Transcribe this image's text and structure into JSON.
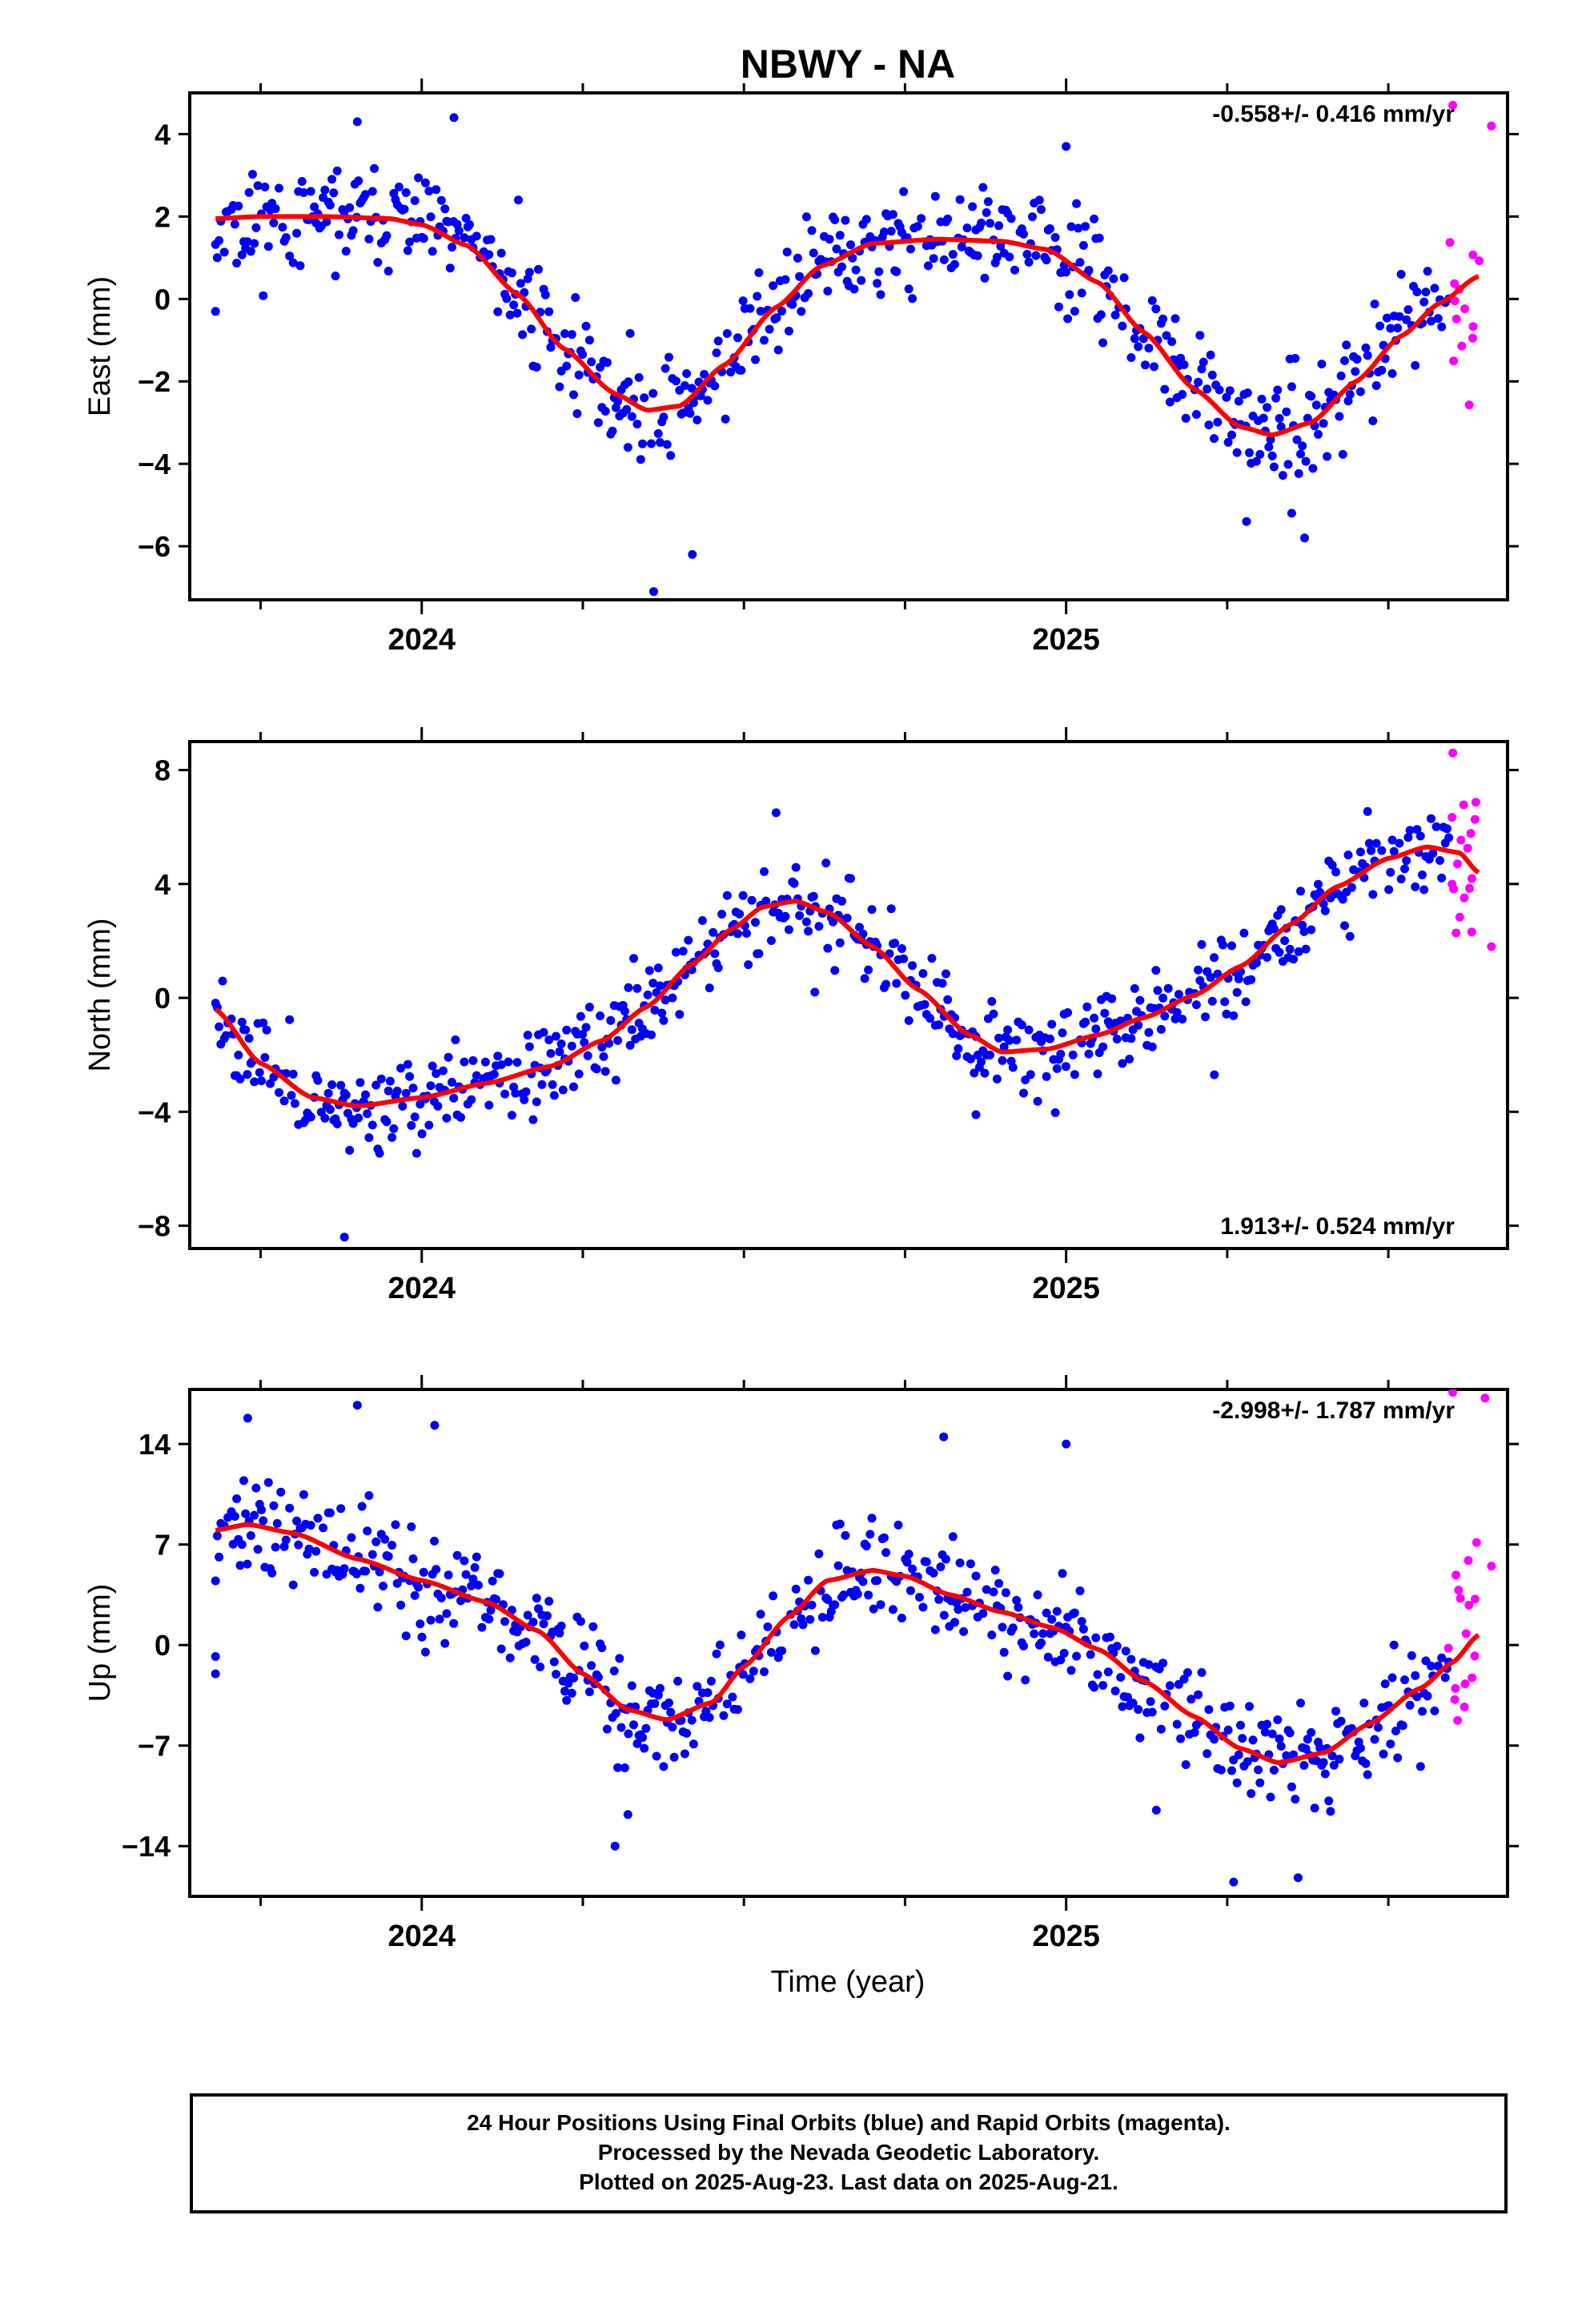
{
  "title": "NBWY - NA",
  "xlabel": "Time (year)",
  "colors": {
    "final": "#0000ff",
    "rapid": "#ff00ff",
    "fit": "#ff0000"
  },
  "chart_data": [
    {
      "type": "scatter",
      "component": "east",
      "ylabel": "East (mm)",
      "rate_label": "-0.558+/- 0.416 mm/yr",
      "rate_position": "top-right",
      "xlim": [
        2023.64,
        2025.685
      ],
      "ylim": [
        -7.3,
        5.0
      ],
      "yticks": [
        4,
        2,
        0,
        -2,
        -4,
        -6
      ],
      "xtick_labels": [
        {
          "x": 2024.0,
          "label": "2024"
        },
        {
          "x": 2025.0,
          "label": "2025"
        }
      ],
      "fit_knots": [
        [
          2023.68,
          1.95
        ],
        [
          2023.75,
          2.0
        ],
        [
          2023.85,
          2.0
        ],
        [
          2023.95,
          1.95
        ],
        [
          2024.0,
          1.8
        ],
        [
          2024.07,
          1.3
        ],
        [
          2024.15,
          0.1
        ],
        [
          2024.22,
          -1.2
        ],
        [
          2024.3,
          -2.3
        ],
        [
          2024.35,
          -2.7
        ],
        [
          2024.4,
          -2.6
        ],
        [
          2024.47,
          -1.6
        ],
        [
          2024.55,
          -0.2
        ],
        [
          2024.62,
          0.8
        ],
        [
          2024.7,
          1.35
        ],
        [
          2024.8,
          1.45
        ],
        [
          2024.9,
          1.4
        ],
        [
          2024.97,
          1.2
        ],
        [
          2025.05,
          0.4
        ],
        [
          2025.12,
          -0.8
        ],
        [
          2025.2,
          -2.2
        ],
        [
          2025.27,
          -3.1
        ],
        [
          2025.32,
          -3.3
        ],
        [
          2025.38,
          -3.0
        ],
        [
          2025.45,
          -2.0
        ],
        [
          2025.52,
          -0.9
        ],
        [
          2025.58,
          -0.1
        ],
        [
          2025.64,
          0.55
        ]
      ],
      "rapid_start": 2025.595,
      "scatter_amp": 0.9,
      "seed": 11,
      "outliers": [
        [
          2023.68,
          -0.3
        ],
        [
          2023.9,
          4.3
        ],
        [
          2024.05,
          4.4
        ],
        [
          2024.15,
          2.4
        ],
        [
          2024.32,
          -3.6
        ],
        [
          2024.36,
          -7.1
        ],
        [
          2024.42,
          -6.2
        ],
        [
          2025.0,
          3.7
        ],
        [
          2025.28,
          -5.4
        ],
        [
          2025.35,
          -5.2
        ],
        [
          2025.37,
          -5.8
        ],
        [
          2025.6,
          4.7
        ],
        [
          2025.66,
          4.2
        ]
      ]
    },
    {
      "type": "scatter",
      "component": "north",
      "ylabel": "North (mm)",
      "rate_label": "1.913+/- 0.524 mm/yr",
      "rate_position": "bottom-right",
      "xlim": [
        2023.64,
        2025.685
      ],
      "ylim": [
        -8.8,
        9.0
      ],
      "yticks": [
        8,
        4,
        0,
        -4,
        -8
      ],
      "xtick_labels": [
        {
          "x": 2024.0,
          "label": "2024"
        },
        {
          "x": 2025.0,
          "label": "2025"
        }
      ],
      "fit_knots": [
        [
          2023.68,
          -0.4
        ],
        [
          2023.75,
          -2.3
        ],
        [
          2023.83,
          -3.5
        ],
        [
          2023.9,
          -3.8
        ],
        [
          2024.0,
          -3.5
        ],
        [
          2024.1,
          -3.0
        ],
        [
          2024.2,
          -2.4
        ],
        [
          2024.28,
          -1.5
        ],
        [
          2024.35,
          -0.3
        ],
        [
          2024.42,
          1.2
        ],
        [
          2024.48,
          2.4
        ],
        [
          2024.53,
          3.2
        ],
        [
          2024.58,
          3.4
        ],
        [
          2024.63,
          3.0
        ],
        [
          2024.7,
          1.8
        ],
        [
          2024.77,
          0.3
        ],
        [
          2024.85,
          -1.3
        ],
        [
          2024.9,
          -1.9
        ],
        [
          2024.97,
          -1.8
        ],
        [
          2025.05,
          -1.3
        ],
        [
          2025.12,
          -0.7
        ],
        [
          2025.2,
          0.1
        ],
        [
          2025.27,
          1.1
        ],
        [
          2025.35,
          2.6
        ],
        [
          2025.42,
          3.9
        ],
        [
          2025.5,
          4.9
        ],
        [
          2025.56,
          5.3
        ],
        [
          2025.61,
          5.1
        ],
        [
          2025.64,
          4.4
        ]
      ],
      "rapid_start": 2025.595,
      "scatter_amp": 1.1,
      "seed": 23,
      "outliers": [
        [
          2023.88,
          -8.4
        ],
        [
          2024.55,
          6.5
        ],
        [
          2024.86,
          -4.1
        ],
        [
          2024.61,
          0.2
        ],
        [
          2025.6,
          8.6
        ],
        [
          2025.66,
          1.8
        ],
        [
          2025.23,
          -2.7
        ]
      ]
    },
    {
      "type": "scatter",
      "component": "up",
      "ylabel": "Up (mm)",
      "rate_label": "-2.998+/- 1.787 mm/yr",
      "rate_position": "top-right",
      "xlim": [
        2023.64,
        2025.685
      ],
      "ylim": [
        -17.5,
        17.8
      ],
      "yticks": [
        14,
        7,
        0,
        -7,
        -14
      ],
      "xtick_labels": [
        {
          "x": 2024.0,
          "label": "2024"
        },
        {
          "x": 2025.0,
          "label": "2025"
        }
      ],
      "fit_knots": [
        [
          2023.68,
          8.0
        ],
        [
          2023.73,
          8.4
        ],
        [
          2023.8,
          7.8
        ],
        [
          2023.9,
          6.0
        ],
        [
          2024.0,
          4.5
        ],
        [
          2024.1,
          3.0
        ],
        [
          2024.18,
          1.0
        ],
        [
          2024.25,
          -2.0
        ],
        [
          2024.32,
          -4.5
        ],
        [
          2024.38,
          -5.2
        ],
        [
          2024.45,
          -4.0
        ],
        [
          2024.5,
          -1.5
        ],
        [
          2024.57,
          2.0
        ],
        [
          2024.63,
          4.5
        ],
        [
          2024.7,
          5.2
        ],
        [
          2024.75,
          4.8
        ],
        [
          2024.82,
          3.5
        ],
        [
          2024.9,
          2.3
        ],
        [
          2024.98,
          1.2
        ],
        [
          2025.05,
          -0.3
        ],
        [
          2025.12,
          -2.5
        ],
        [
          2025.2,
          -5.0
        ],
        [
          2025.27,
          -7.2
        ],
        [
          2025.33,
          -8.2
        ],
        [
          2025.4,
          -7.5
        ],
        [
          2025.47,
          -5.5
        ],
        [
          2025.55,
          -3.0
        ],
        [
          2025.6,
          -1.2
        ],
        [
          2025.64,
          0.7
        ]
      ],
      "rapid_start": 2025.595,
      "scatter_amp": 2.6,
      "seed": 37,
      "outliers": [
        [
          2023.68,
          -2.0
        ],
        [
          2023.68,
          -0.8
        ],
        [
          2023.73,
          15.8
        ],
        [
          2023.9,
          16.7
        ],
        [
          2024.02,
          15.3
        ],
        [
          2024.3,
          -14.0
        ],
        [
          2024.32,
          -11.8
        ],
        [
          2024.81,
          14.5
        ],
        [
          2025.0,
          14.0
        ],
        [
          2025.26,
          -16.5
        ],
        [
          2025.36,
          -16.2
        ],
        [
          2025.14,
          -11.5
        ],
        [
          2025.6,
          17.6
        ],
        [
          2025.65,
          17.2
        ],
        [
          2025.66,
          5.5
        ]
      ]
    }
  ],
  "caption": {
    "line1": "24 Hour Positions Using Final Orbits (blue) and Rapid Orbits (magenta).",
    "line2": "Processed by the Nevada Geodetic Laboratory.",
    "line3": "Plotted on 2025-Aug-23. Last data on 2025-Aug-21."
  }
}
